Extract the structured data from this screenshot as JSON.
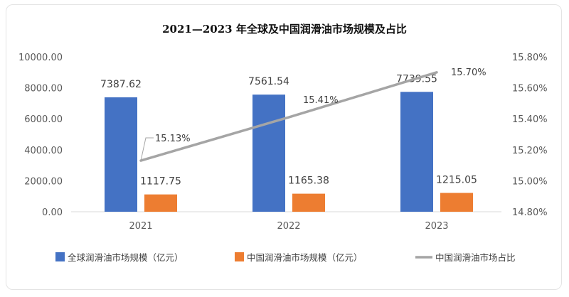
{
  "chart_data": {
    "type": "bar",
    "title": "2021—2023 年全球及中国润滑油市场规模及占比",
    "categories": [
      "2021",
      "2022",
      "2023"
    ],
    "series": [
      {
        "name": "全球润滑油市场规模（亿元）",
        "type": "bar",
        "axis": "left",
        "values": [
          7387.62,
          7561.54,
          7739.55
        ],
        "labels": [
          "7387.62",
          "7561.54",
          "7739.55"
        ],
        "color": "#4472c4"
      },
      {
        "name": "中国润滑油市场规模（亿元）",
        "type": "bar",
        "axis": "left",
        "values": [
          1117.75,
          1165.38,
          1215.05
        ],
        "labels": [
          "1117.75",
          "1165.38",
          "1215.05"
        ],
        "color": "#ed7d31"
      },
      {
        "name": "中国润滑油市场占比",
        "type": "line",
        "axis": "right",
        "values": [
          15.13,
          15.41,
          15.7
        ],
        "labels": [
          "15.13%",
          "15.41%",
          "15.70%"
        ],
        "color": "#a5a5a5"
      }
    ],
    "y_left": {
      "ylim": [
        0,
        10000
      ],
      "ticks": [
        "0.00",
        "2000.00",
        "4000.00",
        "6000.00",
        "8000.00",
        "10000.00"
      ]
    },
    "y_right": {
      "ylim": [
        14.8,
        15.8
      ],
      "ticks": [
        "14.80%",
        "15.00%",
        "15.20%",
        "15.40%",
        "15.60%",
        "15.80%"
      ]
    },
    "grid": false,
    "legend": "bottom"
  }
}
